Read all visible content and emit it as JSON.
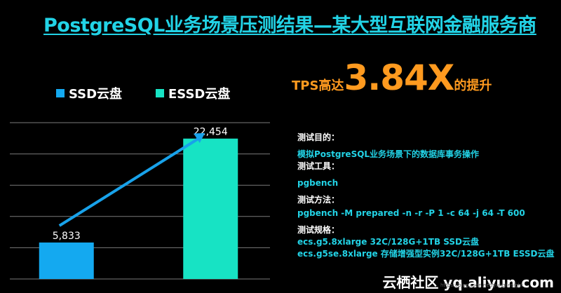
{
  "title": "PostgreSQL业务场景压测结果—某大型互联网金融服务商",
  "tps": {
    "prefix": "TPS高达",
    "multiplier": "3.84X",
    "suffix": "的提升"
  },
  "info": {
    "purpose_label": "测试目的：",
    "purpose_value": "模拟PostgreSQL业务场景下的数据库事务操作",
    "tool_label": "测试工具：",
    "tool_value": "pgbench",
    "method_label": "测试方法：",
    "method_value": "pgbench -M prepared -n -r -P 1 -c 64 -j 64 -T 600",
    "spec_label": "测试规格：",
    "spec_value_1": "ecs.g5.8xlarge 32C/128G+1TB SSD云盘",
    "spec_value_2": "ecs.g5se.8xlarge 存储增强型实例32C/128G+1TB ESSD云盘"
  },
  "watermark": "云栖社区 yq.aliyun.com",
  "watermark_small": "https://blog.csdn.net/yunqiinsight",
  "colors": {
    "ssd": "#14a9f0",
    "essd": "#17e3c4",
    "accent": "#22d3e6",
    "highlight": "#ff9a1f"
  },
  "chart_data": {
    "type": "bar",
    "categories": [
      "SSD云盘",
      "ESSD云盘"
    ],
    "series": [
      {
        "name": "SSD云盘",
        "values": [
          5833,
          null
        ]
      },
      {
        "name": "ESSD云盘",
        "values": [
          null,
          22454
        ]
      }
    ],
    "data_labels": [
      "5,833",
      "22,454"
    ],
    "ylim": [
      0,
      25000
    ],
    "grid": true,
    "legend": "top",
    "arrow": {
      "from": "SSD云盘",
      "to": "ESSD云盘"
    }
  }
}
